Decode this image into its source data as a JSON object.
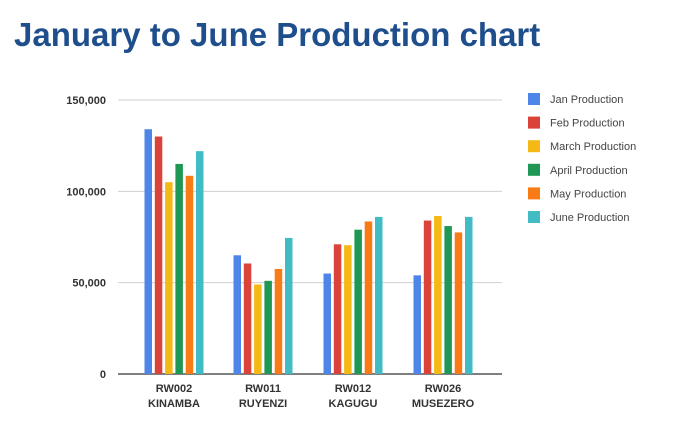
{
  "chart_data": {
    "type": "bar",
    "title": "January to June Production chart",
    "xlabel": "",
    "ylabel": "",
    "ylim": [
      0,
      150000
    ],
    "yticks": [
      0,
      50000,
      100000,
      150000
    ],
    "ytick_labels": [
      "0",
      "50,000",
      "100,000",
      "150,000"
    ],
    "grid": true,
    "legend_position": "right",
    "categories": [
      [
        "RW002",
        "KINAMBA"
      ],
      [
        "RW011",
        "RUYENZI"
      ],
      [
        "RW012",
        "KAGUGU"
      ],
      [
        "RW026",
        "MUSEZERO"
      ]
    ],
    "series": [
      {
        "name": "Jan Production",
        "color": "#4e85e9",
        "values": [
          134000,
          65000,
          55000,
          54000
        ]
      },
      {
        "name": "Feb Production",
        "color": "#d9433a",
        "values": [
          130000,
          60500,
          71000,
          84000
        ]
      },
      {
        "name": "March Production",
        "color": "#f4b914",
        "values": [
          105000,
          49000,
          70500,
          86500
        ]
      },
      {
        "name": "April Production",
        "color": "#1f9856",
        "values": [
          115000,
          51000,
          79000,
          81000
        ]
      },
      {
        "name": "May Production",
        "color": "#f97b16",
        "values": [
          108500,
          57500,
          83500,
          77500
        ]
      },
      {
        "name": "June Production",
        "color": "#42bcc4",
        "values": [
          122000,
          74500,
          86000,
          86000
        ]
      }
    ]
  }
}
